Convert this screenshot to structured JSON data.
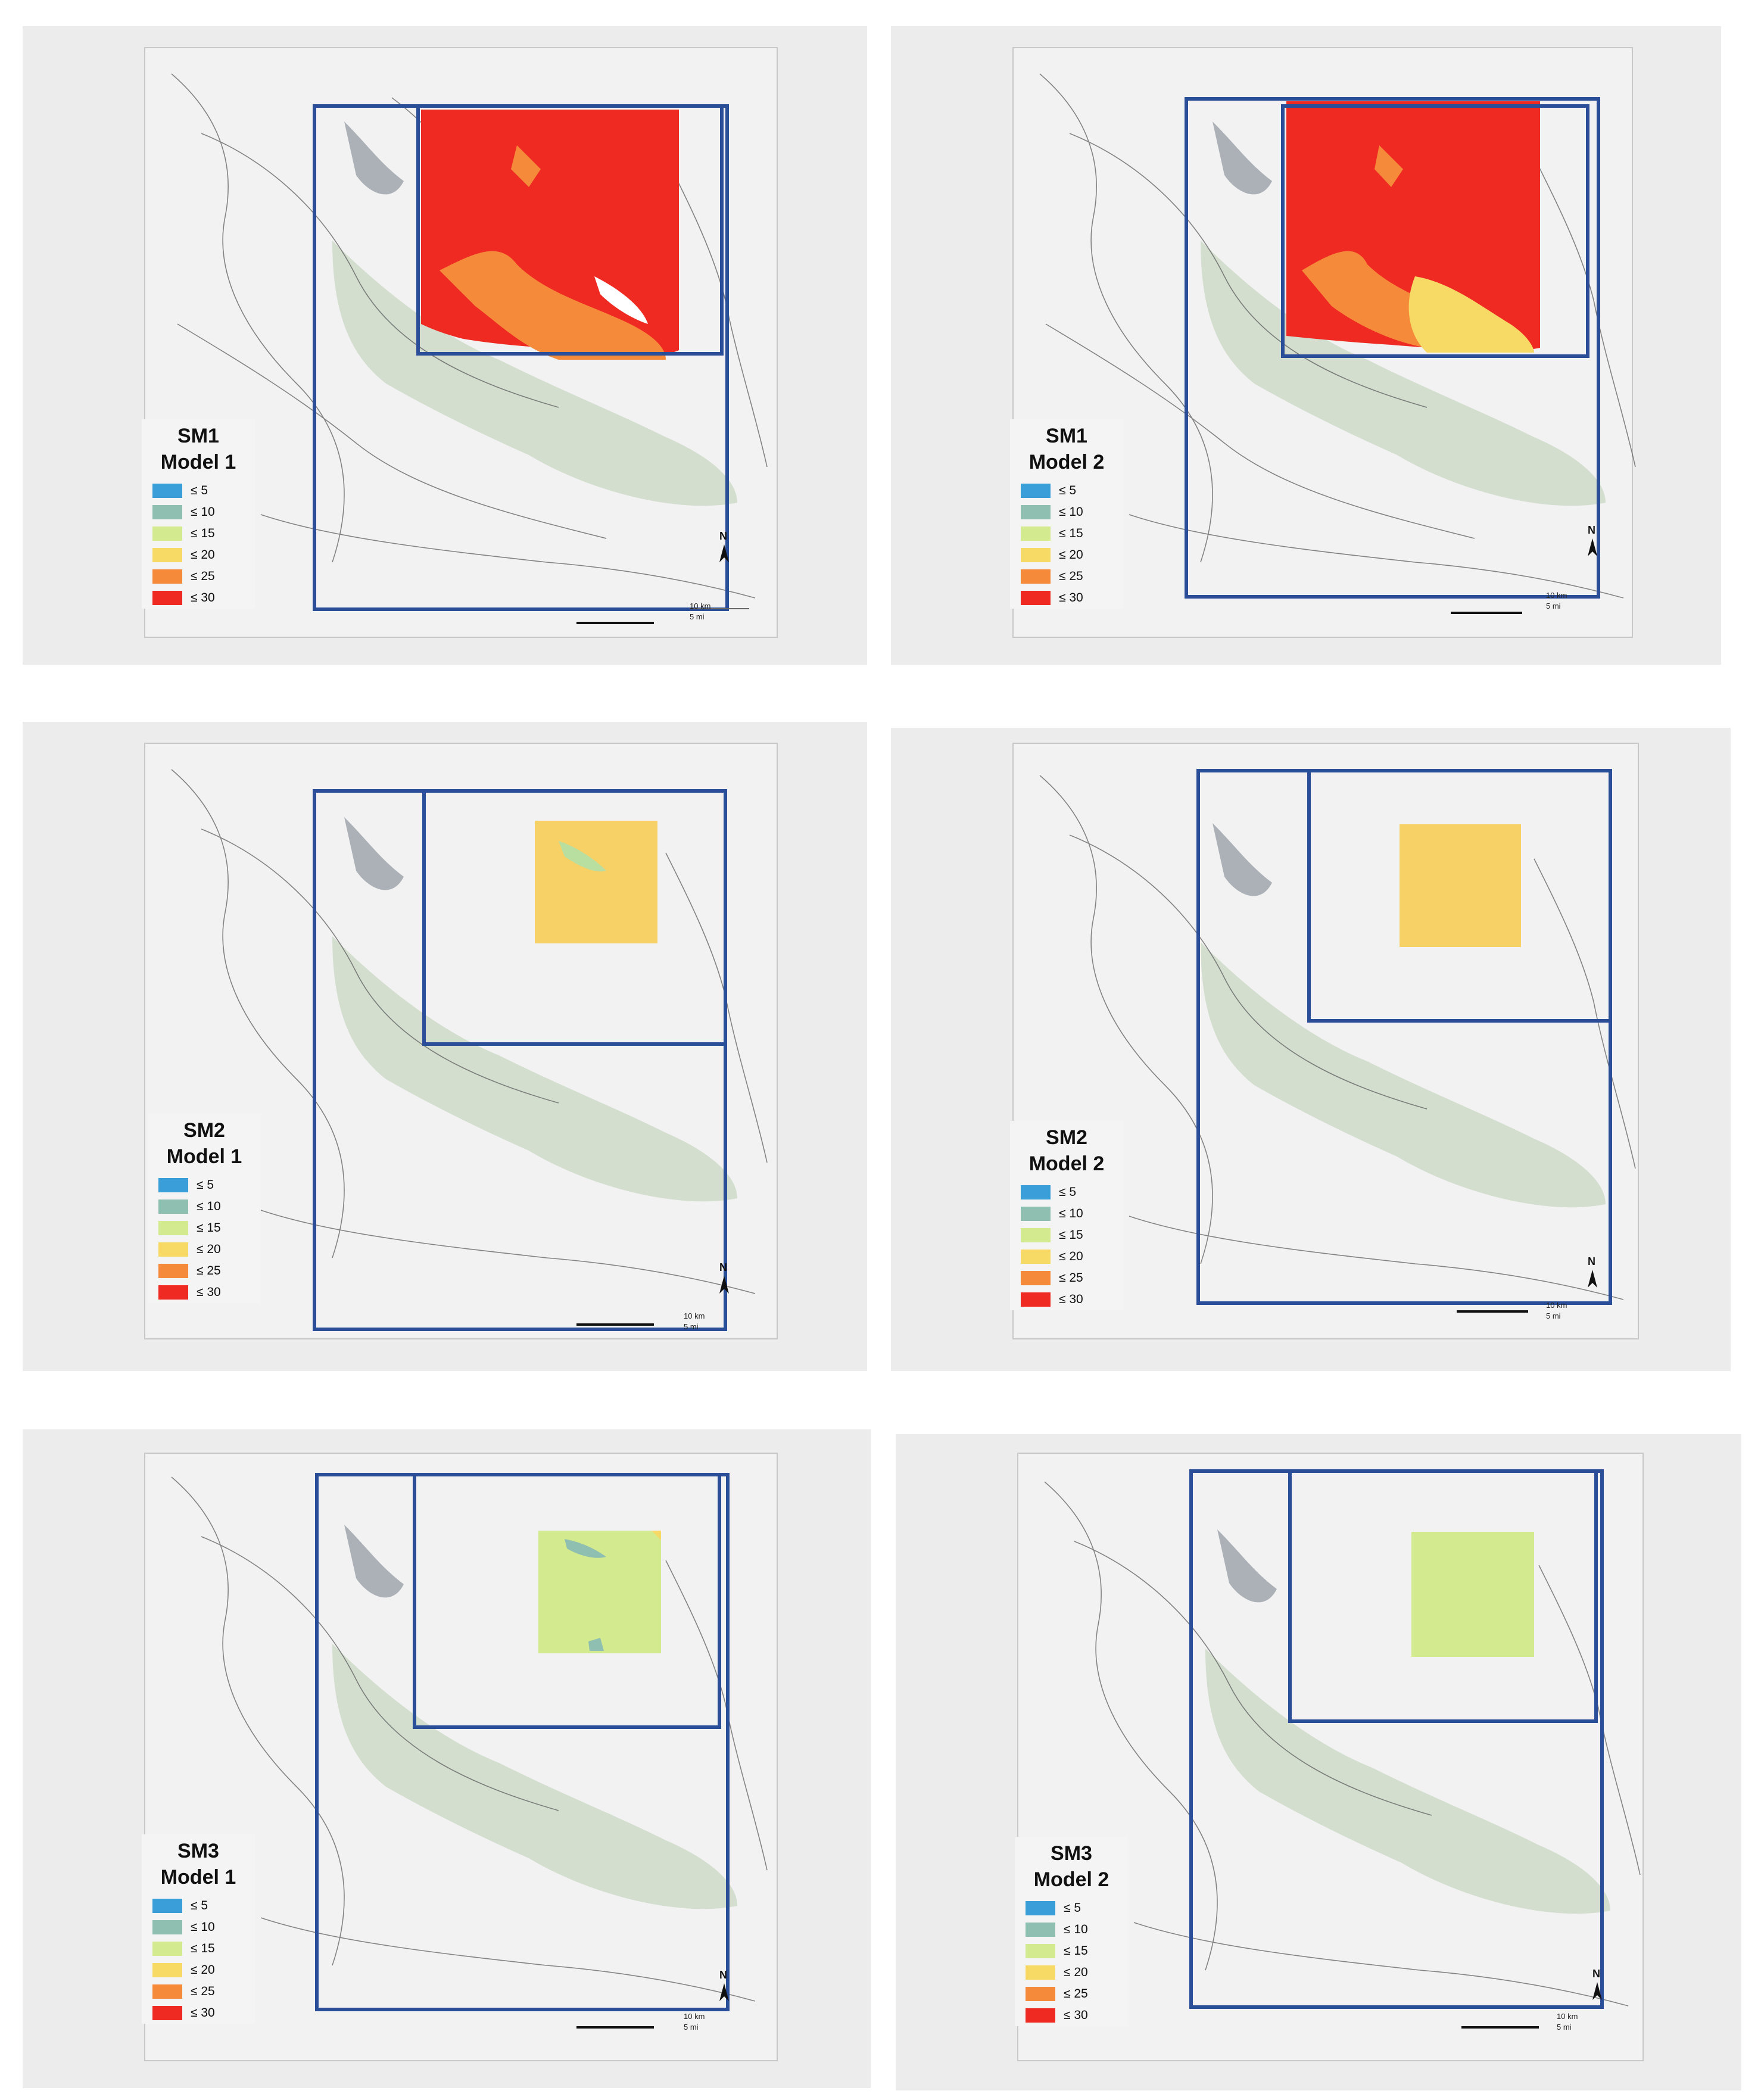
{
  "panels": [
    {
      "title_a": "SM1",
      "title_b": "Model 1"
    },
    {
      "title_a": "SM1",
      "title_b": "Model 2"
    },
    {
      "title_a": "SM2",
      "title_b": "Model 1"
    },
    {
      "title_a": "SM2",
      "title_b": "Model 2"
    },
    {
      "title_a": "SM3",
      "title_b": "Model 1"
    },
    {
      "title_a": "SM3",
      "title_b": "Model 2"
    }
  ],
  "legend": [
    {
      "label": "≤ 5",
      "color": "#3a9fd8"
    },
    {
      "label": "≤ 10",
      "color": "#8fbfb0"
    },
    {
      "label": "≤ 15",
      "color": "#d3ea8e"
    },
    {
      "label": "≤ 20",
      "color": "#f7d966"
    },
    {
      "label": "≤ 25",
      "color": "#f58b3a"
    },
    {
      "label": "≤ 30",
      "color": "#ef2a22"
    }
  ],
  "scale": {
    "km": "10 km",
    "mi": "5 mi"
  },
  "north_label": "N",
  "raster_colors": {
    "sm1_m1_main": "#ef2a22",
    "sm1_m1_low": "#f58b3a",
    "sm1_m2_main": "#ef2a22",
    "sm1_m2_mid": "#f58b3a",
    "sm1_m2_low": "#f7d966",
    "sm2_main": "#f7d066",
    "sm2_patch": "#b9dfa0",
    "sm3_main": "#d3ea8e",
    "sm3_patch": "#8fbfb0",
    "frame": "#2a4f98",
    "forest": "#cfdccb"
  }
}
